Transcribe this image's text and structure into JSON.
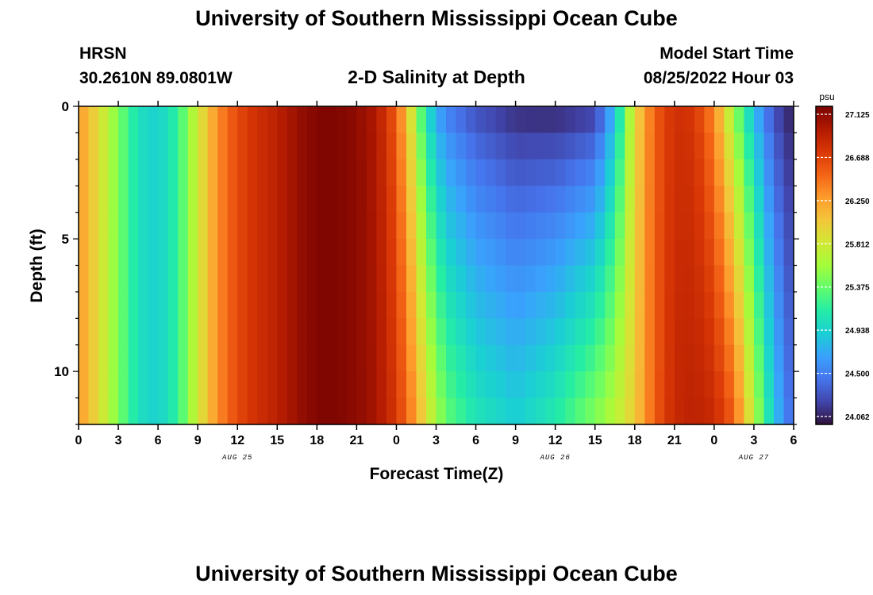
{
  "page": {
    "title": "University of Southern Mississippi Ocean Cube",
    "footer_title": "University of Southern Mississippi Ocean Cube",
    "station": {
      "name": "HRSN",
      "coords": "30.2610N  89.0801W"
    },
    "model": {
      "label": "Model Start Time",
      "start": "08/25/2022 Hour 03"
    }
  },
  "chart_data": {
    "type": "heatmap",
    "title": "2-D Salinity at Depth",
    "xlabel": "Forecast Time(Z)",
    "ylabel": "Depth (ft)",
    "x_tick_labels": [
      "0",
      "3",
      "6",
      "9",
      "12",
      "15",
      "18",
      "21",
      "0",
      "3",
      "6",
      "9",
      "12",
      "15",
      "18",
      "21",
      "0",
      "3",
      "6"
    ],
    "date_labels": [
      {
        "label": "AUG 25",
        "hours": 12
      },
      {
        "label": "AUG 26",
        "hours": 36
      },
      {
        "label": "AUG 27",
        "hours": 51
      }
    ],
    "x_range_hours": [
      0,
      54
    ],
    "y_ticks": [
      0,
      5,
      10
    ],
    "y_range_ft": [
      0,
      12
    ],
    "colorbar": {
      "unit": "psu",
      "min": 24.062,
      "max": 27.125,
      "tick_labels": [
        "27.125",
        "26.688",
        "26.250",
        "25.812",
        "25.375",
        "24.938",
        "24.500",
        "24.062"
      ],
      "colors": [
        "#30123b",
        "#4145ab",
        "#4675ed",
        "#39a2fc",
        "#1bcfd4",
        "#24eca6",
        "#61fc6c",
        "#a4fc3b",
        "#d1e834",
        "#f3c63a",
        "#fe9b2d",
        "#f36315",
        "#d93806",
        "#b11901",
        "#7a0402"
      ]
    },
    "salinity_profile": {
      "time_hours": [
        0,
        1.5,
        3,
        4.5,
        6,
        7.5,
        9,
        10.5,
        12,
        13.5,
        15,
        16.5,
        18,
        19.5,
        21,
        22.5,
        24,
        25,
        26,
        27,
        28,
        30,
        33,
        36,
        39,
        40.5,
        42,
        43.5,
        45,
        46.5,
        48,
        49.5,
        51,
        52.5,
        54
      ],
      "surface_psu": [
        26.25,
        25.9,
        25.45,
        25.05,
        24.95,
        25.2,
        25.8,
        26.3,
        26.6,
        26.75,
        26.85,
        27.0,
        27.1,
        27.1,
        27.05,
        26.9,
        26.5,
        25.9,
        25.2,
        24.7,
        24.5,
        24.3,
        24.15,
        24.12,
        24.2,
        24.8,
        25.9,
        26.5,
        26.75,
        26.7,
        26.3,
        25.5,
        24.8,
        24.3,
        24.1
      ],
      "bottom_psu": [
        26.25,
        25.9,
        25.45,
        25.05,
        24.95,
        25.2,
        25.8,
        26.3,
        26.6,
        26.75,
        26.85,
        27.0,
        27.1,
        27.1,
        27.05,
        26.95,
        26.7,
        26.4,
        26.0,
        25.6,
        25.35,
        25.1,
        24.95,
        25.15,
        25.5,
        25.7,
        26.0,
        26.5,
        26.8,
        26.85,
        26.8,
        26.5,
        25.7,
        24.9,
        24.4
      ]
    }
  }
}
